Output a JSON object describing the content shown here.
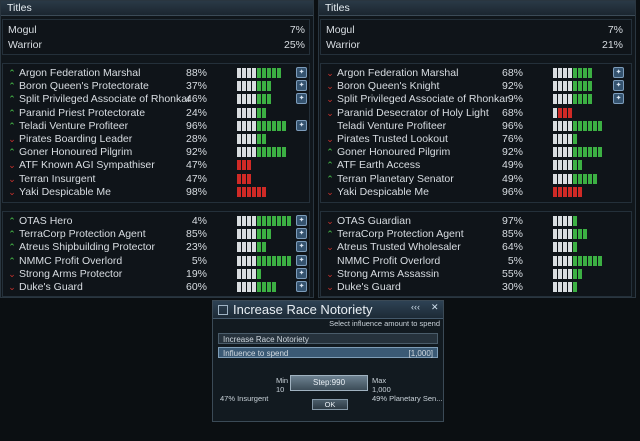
{
  "left": {
    "title": "Titles",
    "generic": [
      {
        "name": "Mogul",
        "pct": "7%"
      },
      {
        "name": "Warrior",
        "pct": "25%"
      }
    ],
    "races": [
      {
        "dir": "up",
        "name": "Argon Federation Marshal",
        "pct": "88%",
        "w": 4,
        "c": "g",
        "n": 5,
        "icon": true
      },
      {
        "dir": "up",
        "name": "Boron Queen's Protectorate",
        "pct": "37%",
        "w": 4,
        "c": "g",
        "n": 3,
        "icon": true
      },
      {
        "dir": "up",
        "name": "Split Privileged Associate of Rhonkar",
        "pct": "46%",
        "w": 4,
        "c": "g",
        "n": 3,
        "icon": true
      },
      {
        "dir": "up",
        "name": "Paranid Priest Protectorate",
        "pct": "24%",
        "w": 4,
        "c": "g",
        "n": 2,
        "icon": false
      },
      {
        "dir": "up",
        "name": "Teladi Venture Profiteer",
        "pct": "96%",
        "w": 4,
        "c": "g",
        "n": 6,
        "icon": true
      },
      {
        "dir": "down",
        "name": "Pirates Boarding Leader",
        "pct": "28%",
        "w": 4,
        "c": "g",
        "n": 2,
        "icon": false
      },
      {
        "dir": "up",
        "name": "Goner Honoured Pilgrim",
        "pct": "92%",
        "w": 4,
        "c": "g",
        "n": 6,
        "icon": false
      },
      {
        "dir": "down",
        "name": "ATF Known AGI Sympathiser",
        "pct": "47%",
        "w": 0,
        "c": "r",
        "n": 3,
        "icon": false
      },
      {
        "dir": "down",
        "name": "Terran Insurgent",
        "pct": "47%",
        "w": 0,
        "c": "r",
        "n": 3,
        "icon": false
      },
      {
        "dir": "down",
        "name": "Yaki Despicable Me",
        "pct": "98%",
        "w": 0,
        "c": "r",
        "n": 6,
        "icon": false
      }
    ],
    "corps": [
      {
        "dir": "up",
        "name": "OTAS Hero",
        "pct": "4%",
        "w": 4,
        "c": "g",
        "n": 7,
        "icon": true
      },
      {
        "dir": "up",
        "name": "TerraCorp Protection Agent",
        "pct": "85%",
        "w": 4,
        "c": "g",
        "n": 3,
        "icon": true
      },
      {
        "dir": "up",
        "name": "Atreus Shipbuilding Protector",
        "pct": "23%",
        "w": 4,
        "c": "g",
        "n": 2,
        "icon": true
      },
      {
        "dir": "up",
        "name": "NMMC Profit Overlord",
        "pct": "5%",
        "w": 4,
        "c": "g",
        "n": 7,
        "icon": true
      },
      {
        "dir": "down",
        "name": "Strong Arms Protector",
        "pct": "19%",
        "w": 4,
        "c": "g",
        "n": 1,
        "icon": true
      },
      {
        "dir": "down",
        "name": "Duke's Guard",
        "pct": "60%",
        "w": 4,
        "c": "g",
        "n": 4,
        "icon": true
      }
    ]
  },
  "right": {
    "title": "Titles",
    "generic": [
      {
        "name": "Mogul",
        "pct": "7%"
      },
      {
        "name": "Warrior",
        "pct": "21%"
      }
    ],
    "races": [
      {
        "dir": "down",
        "name": "Argon Federation Marshal",
        "pct": "68%",
        "w": 4,
        "c": "g",
        "n": 4,
        "icon": true
      },
      {
        "dir": "down",
        "name": "Boron Queen's Knight",
        "pct": "92%",
        "w": 4,
        "c": "g",
        "n": 4,
        "icon": true
      },
      {
        "dir": "down",
        "name": "Split Privileged Associate of Rhonkar",
        "pct": "9%",
        "w": 4,
        "c": "g",
        "n": 4,
        "icon": true
      },
      {
        "dir": "down",
        "name": "Paranid Desecrator of Holy Light",
        "pct": "68%",
        "w": 1,
        "c": "r",
        "n": 3,
        "icon": false
      },
      {
        "dir": "none",
        "name": "Teladi Venture Profiteer",
        "pct": "96%",
        "w": 4,
        "c": "g",
        "n": 6,
        "icon": false
      },
      {
        "dir": "down",
        "name": "Pirates Trusted Lookout",
        "pct": "76%",
        "w": 4,
        "c": "g",
        "n": 1,
        "icon": false
      },
      {
        "dir": "up",
        "name": "Goner Honoured Pilgrim",
        "pct": "92%",
        "w": 4,
        "c": "g",
        "n": 6,
        "icon": false
      },
      {
        "dir": "up",
        "name": "ATF Earth Access",
        "pct": "49%",
        "w": 4,
        "c": "g",
        "n": 2,
        "icon": false
      },
      {
        "dir": "up",
        "name": "Terran Planetary Senator",
        "pct": "49%",
        "w": 4,
        "c": "g",
        "n": 5,
        "icon": false
      },
      {
        "dir": "down",
        "name": "Yaki Despicable Me",
        "pct": "96%",
        "w": 0,
        "c": "r",
        "n": 6,
        "icon": false
      }
    ],
    "corps": [
      {
        "dir": "down",
        "name": "OTAS Guardian",
        "pct": "97%",
        "w": 4,
        "c": "g",
        "n": 1,
        "icon": false
      },
      {
        "dir": "up",
        "name": "TerraCorp Protection Agent",
        "pct": "85%",
        "w": 4,
        "c": "g",
        "n": 3,
        "icon": false
      },
      {
        "dir": "down",
        "name": "Atreus Trusted Wholesaler",
        "pct": "64%",
        "w": 4,
        "c": "g",
        "n": 1,
        "icon": false
      },
      {
        "dir": "none",
        "name": "NMMC Profit Overlord",
        "pct": "5%",
        "w": 4,
        "c": "g",
        "n": 6,
        "icon": false
      },
      {
        "dir": "down",
        "name": "Strong Arms Assassin",
        "pct": "55%",
        "w": 4,
        "c": "g",
        "n": 2,
        "icon": false
      },
      {
        "dir": "down",
        "name": "Duke's Guard",
        "pct": "30%",
        "w": 4,
        "c": "g",
        "n": 1,
        "icon": false
      }
    ]
  },
  "dialog": {
    "title": "Increase Race Notoriety",
    "back": "‹‹‹",
    "close": "✕",
    "subtitle": "Select influence amount to spend",
    "field1": "Increase Race Notoriety",
    "field2_label": "Influence to spend",
    "field2_value": "[1,000]",
    "min_label": "Min",
    "min_value": "10",
    "max_label": "Max",
    "max_value": "1,000",
    "slider_value": "Step:990",
    "ok": "OK",
    "left_info": "47% Insurgent",
    "right_info": "49% Planetary Sen..."
  }
}
